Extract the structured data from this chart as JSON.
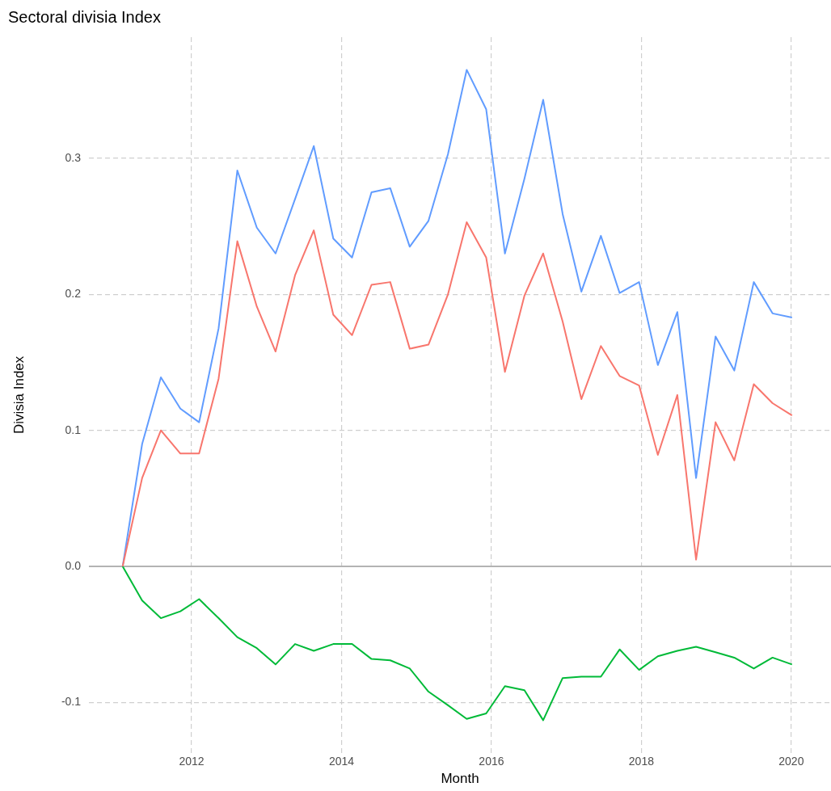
{
  "chart_data": {
    "type": "line",
    "title": "Sectoral divisia Index",
    "xlabel": "Month",
    "ylabel": "Divisia Index",
    "x": [
      2011.08,
      2011.34,
      2011.59,
      2011.85,
      2012.1,
      2012.36,
      2012.61,
      2012.87,
      2013.12,
      2013.38,
      2013.63,
      2013.89,
      2014.14,
      2014.4,
      2014.65,
      2014.91,
      2015.16,
      2015.42,
      2015.67,
      2015.93,
      2016.18,
      2016.44,
      2016.69,
      2016.95,
      2017.2,
      2017.46,
      2017.71,
      2017.97,
      2018.22,
      2018.48,
      2018.73,
      2018.99,
      2019.24,
      2019.5,
      2019.75,
      2020.01
    ],
    "series": [
      {
        "color": "#f8766d",
        "values": [
          0,
          0.065,
          0.1,
          0.083,
          0.083,
          0.138,
          0.239,
          0.191,
          0.158,
          0.214,
          0.247,
          0.185,
          0.17,
          0.207,
          0.209,
          0.16,
          0.163,
          0.2,
          0.253,
          0.227,
          0.143,
          0.199,
          0.23,
          0.18,
          0.123,
          0.162,
          0.14,
          0.133,
          0.082,
          0.126,
          0.005,
          0.106,
          0.078,
          0.134,
          0.12,
          0.111
        ]
      },
      {
        "color": "#00ba38",
        "values": [
          0,
          -0.025,
          -0.038,
          -0.033,
          -0.024,
          -0.038,
          -0.052,
          -0.06,
          -0.072,
          -0.057,
          -0.062,
          -0.057,
          -0.057,
          -0.068,
          -0.069,
          -0.075,
          -0.092,
          -0.102,
          -0.112,
          -0.108,
          -0.088,
          -0.091,
          -0.113,
          -0.082,
          -0.081,
          -0.081,
          -0.061,
          -0.076,
          -0.066,
          -0.062,
          -0.059,
          -0.063,
          -0.067,
          -0.075,
          -0.067,
          -0.072
        ]
      },
      {
        "color": "#619cff",
        "values": [
          0,
          0.09,
          0.139,
          0.116,
          0.106,
          0.175,
          0.291,
          0.249,
          0.23,
          0.27,
          0.309,
          0.241,
          0.227,
          0.275,
          0.278,
          0.235,
          0.254,
          0.303,
          0.365,
          0.336,
          0.23,
          0.285,
          0.343,
          0.259,
          0.202,
          0.243,
          0.201,
          0.209,
          0.148,
          0.187,
          0.065,
          0.169,
          0.144,
          0.209,
          0.186,
          0.183
        ]
      }
    ],
    "xlim": [
      2010.63,
      2020.53
    ],
    "xticks": [
      2012,
      2014,
      2016,
      2018,
      2020
    ],
    "ylim": [
      -0.137,
      0.389
    ],
    "yticks": [
      -0.1,
      {
        "value": 0,
        "label": "0.0"
      },
      0.1,
      0.2,
      0.3
    ],
    "ref_lines": [
      {
        "axis": "y",
        "value": 0,
        "color": "#b3b3b3"
      }
    ],
    "grid": true,
    "legend": false,
    "marker": "none",
    "line_style": "solid"
  }
}
